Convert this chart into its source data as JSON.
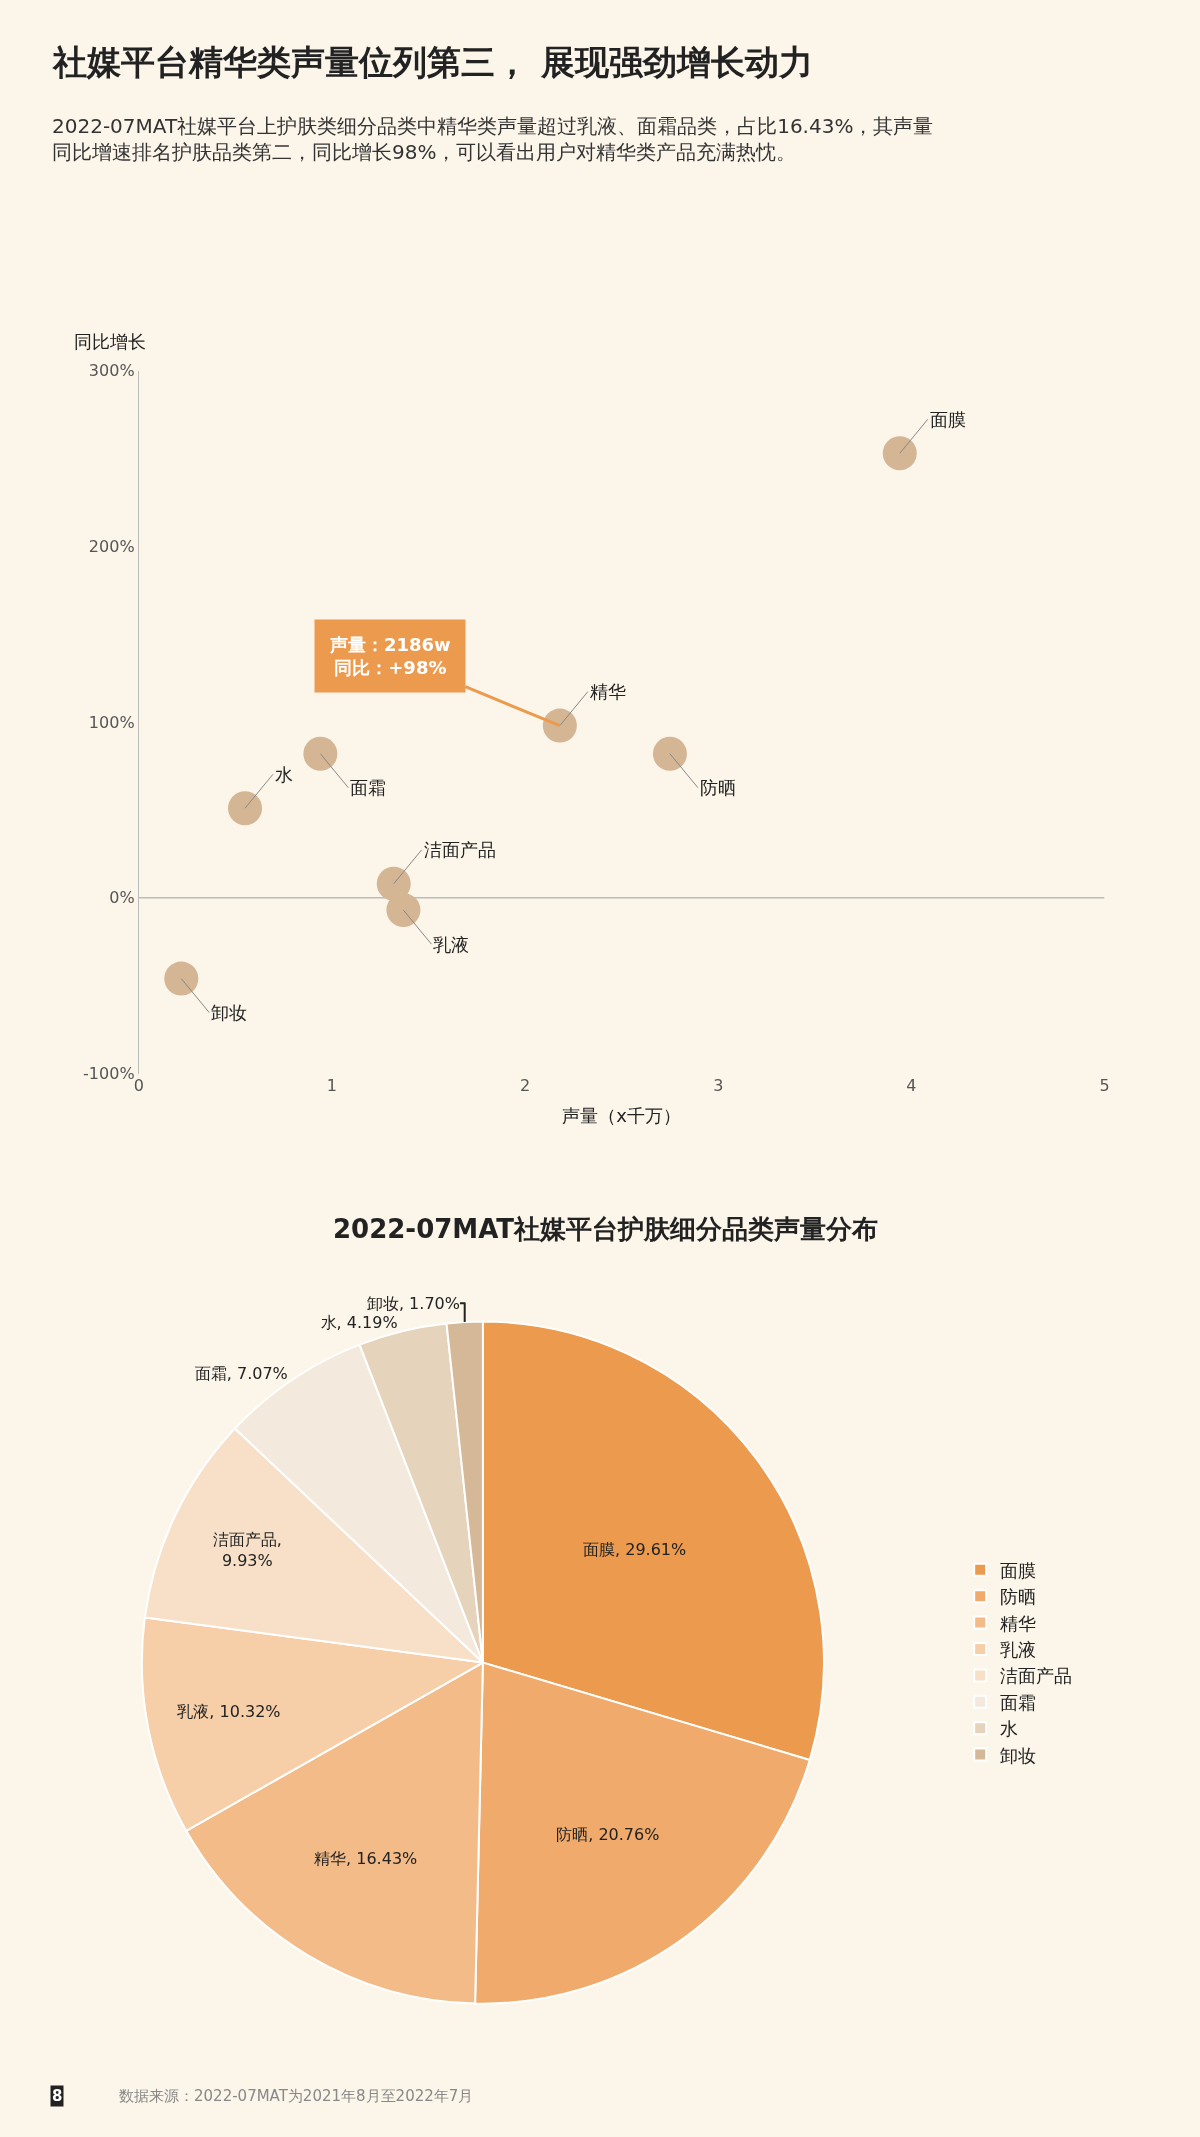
{
  "chart_data": [
    {
      "type": "scatter",
      "title": "社媒平台精华类声量位列第三， 展现强劲增长动力",
      "subtitle": "2022-07MAT社媒平台上护肤类细分品类中精华类声量超过乳液、面霜品类，占比16.43%，其声量同比增速排名护肤品类第二，同比增长98%，可以看出用户对精华类产品充满热忱。",
      "xlabel": "声量（x千万）",
      "ylabel": "同比增长",
      "series": [
        {
          "color": "#d4b594",
          "x": [
            3.94,
            2.75,
            2.18,
            1.37,
            1.32,
            0.94,
            0.55,
            0.22
          ],
          "values": [
            253,
            82,
            98,
            -7,
            8,
            82,
            51,
            -46
          ]
        }
      ],
      "marker": "circle",
      "grid": false,
      "legend": false,
      "ref_lines": [
        {
          "axis": "y",
          "value": 0,
          "color": "#bbbbbb"
        }
      ],
      "xlim": [
        0,
        5
      ],
      "xticks": [
        0,
        1,
        2,
        3,
        4,
        5
      ],
      "ylim": [
        -100,
        300
      ],
      "yticks": [
        {
          "value": -100,
          "label": "-100%"
        },
        {
          "value": 0,
          "label": "0%"
        },
        {
          "value": 100,
          "label": "100%"
        },
        {
          "value": 200,
          "label": "200%"
        },
        {
          "value": 300,
          "label": "300%"
        }
      ],
      "annotations": [
        {
          "text": "面膜",
          "x": 3.94,
          "y": 253
        },
        {
          "text": "防晒",
          "x": 2.75,
          "y": 82
        },
        {
          "text": "精华",
          "x": 2.18,
          "y": 98
        },
        {
          "text": "乳液",
          "x": 1.37,
          "y": -7
        },
        {
          "text": "洁面产品",
          "x": 1.32,
          "y": 8
        },
        {
          "text": "面霜",
          "x": 0.94,
          "y": 82
        },
        {
          "text": "水",
          "x": 0.55,
          "y": 51
        },
        {
          "text": "卸妆",
          "x": 0.22,
          "y": -46
        },
        {
          "text": "声量：2186w\n同比：+98%",
          "x": 2.18,
          "y": 98
        }
      ]
    },
    {
      "type": "pie",
      "title": "2022-07MAT社媒平台护肤细分品类声量分布",
      "categories": [
        "面膜",
        "防晒",
        "精华",
        "乳液",
        "洁面产品",
        "面霜",
        "水",
        "卸妆"
      ],
      "values": [
        29.61,
        20.76,
        16.43,
        10.32,
        9.93,
        7.07,
        4.19,
        1.7
      ],
      "colors": [
        "#ec9a4e",
        "#efaa6c",
        "#f2bb88",
        "#f6cea8",
        "#f8e0c8",
        "#f3e9dc",
        "#e6d3bb",
        "#d4b898"
      ],
      "value_labels": [
        "面膜, 29.61%",
        "防晒, 20.76%",
        "精华, 16.43%",
        "乳液, 10.32%",
        "洁面产品,\n9.93%",
        "面霜, 7.07%",
        "水, 4.19%",
        "卸妆, 1.70%"
      ],
      "legend": "right",
      "annotations": [
        "数据来源：2022-07MAT为2021年8月至2022年7月",
        "8"
      ]
    }
  ]
}
